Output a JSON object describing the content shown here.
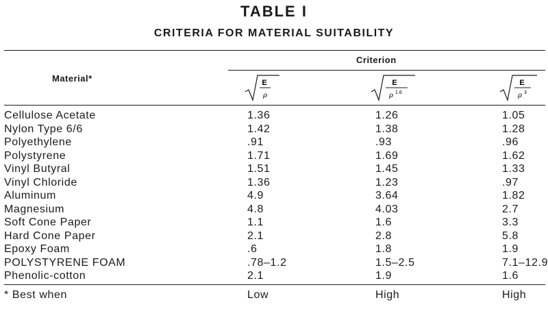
{
  "table": {
    "title": "TABLE I",
    "subtitle": "CRITERIA FOR MATERIAL SUITABILITY",
    "material_header": "Material*",
    "criterion_header": "Criterion",
    "formulas": [
      {
        "numerator": "E",
        "denominator": "ρ",
        "exponent": ""
      },
      {
        "numerator": "E",
        "denominator": "ρ",
        "exponent": "1.6"
      },
      {
        "numerator": "E",
        "denominator": "ρ",
        "exponent": "3"
      }
    ],
    "rows": [
      {
        "material": "Cellulose Acetate",
        "c1": "1.36",
        "c2": "1.26",
        "c3": "1.05"
      },
      {
        "material": "Nylon Type 6/6",
        "c1": "1.42",
        "c2": "1.38",
        "c3": "1.28"
      },
      {
        "material": "Polyethylene",
        "c1": ".91",
        "c2": ".93",
        "c3": ".96"
      },
      {
        "material": "Polystyrene",
        "c1": "1.71",
        "c2": "1.69",
        "c3": "1.62"
      },
      {
        "material": "Vinyl Butyral",
        "c1": "1.51",
        "c2": "1.45",
        "c3": "1.33"
      },
      {
        "material": "Vinyl Chloride",
        "c1": "1.36",
        "c2": "1.23",
        "c3": ".97"
      },
      {
        "material": "Aluminum",
        "c1": "4.9",
        "c2": "3.64",
        "c3": "1.82"
      },
      {
        "material": "Magnesium",
        "c1": "4.8",
        "c2": "4.03",
        "c3": "2.7"
      },
      {
        "material": "Soft Cone Paper",
        "c1": "1.1",
        "c2": "1.6",
        "c3": "3.3"
      },
      {
        "material": "Hard Cone Paper",
        "c1": "2.1",
        "c2": "2.8",
        "c3": "5.8"
      },
      {
        "material": "Epoxy Foam",
        "c1": ".6",
        "c2": "1.8",
        "c3": "1.9"
      },
      {
        "material": "POLYSTYRENE FOAM",
        "c1": ".78–1.2",
        "c2": "1.5–2.5",
        "c3": "7.1–12.9"
      },
      {
        "material": "Phenolic-cotton",
        "c1": "2.1",
        "c2": "1.9",
        "c3": "1.6"
      }
    ],
    "footer": {
      "material": "* Best when",
      "c1": "Low",
      "c2": "High",
      "c3": "High"
    }
  }
}
